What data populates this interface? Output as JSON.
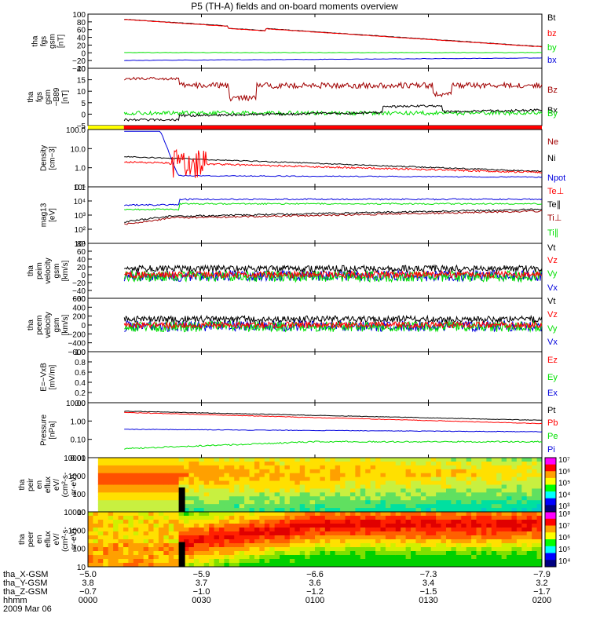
{
  "title": "P5 (TH-A) fields and on-board moments overview",
  "date_label": "2009 Mar 06",
  "colors": {
    "black": "#000000",
    "red": "#ff0000",
    "darkred": "#a00000",
    "green": "#00e000",
    "blue": "#0000dd"
  },
  "chart_data": [
    {
      "id": "fgs",
      "type": "line",
      "ylabel": [
        "tha",
        "fgs",
        "gsm",
        "[nT]"
      ],
      "yticks": [
        "100",
        "80",
        "60",
        "40",
        "20",
        "0",
        "−20",
        "−40"
      ],
      "legend": [
        {
          "name": "Bt",
          "color": "black"
        },
        {
          "name": "bz",
          "color": "red"
        },
        {
          "name": "by",
          "color": "green"
        },
        {
          "name": "bx",
          "color": "blue"
        }
      ]
    },
    {
      "id": "fgm",
      "type": "line",
      "ylabel": [
        "tha",
        "fgs",
        "gsm",
        "−B89",
        "[nT]"
      ],
      "yticks": [
        "20",
        "15",
        "10",
        "5",
        "0",
        "−5"
      ],
      "legend": [
        {
          "name": "Bz",
          "color": "darkred"
        },
        {
          "name": "Bx",
          "color": "black"
        },
        {
          "name": "By",
          "color": "green"
        }
      ]
    },
    {
      "id": "mode",
      "type": "bar",
      "segments": [
        {
          "until_min": 9.5,
          "color": "#ffff00"
        },
        {
          "until_min": 120,
          "color": "#ff0000"
        }
      ]
    },
    {
      "id": "density",
      "type": "line",
      "ylabel": [
        "Density",
        "[cm−3]"
      ],
      "yticks": [
        "100.0",
        "10.0",
        "1.0",
        "0.1"
      ],
      "legend": [
        {
          "name": "Ne",
          "color": "darkred"
        },
        {
          "name": "Ni",
          "color": "black"
        },
        {
          "name": "Npot",
          "color": "blue"
        }
      ]
    },
    {
      "id": "temp",
      "type": "line",
      "ylabel": [
        "mag13",
        "[eV]"
      ],
      "yticks": [
        "10⁵",
        "10⁴",
        "10³",
        "10²",
        "10¹"
      ],
      "legend": [
        {
          "name": "Te⊥",
          "color": "red"
        },
        {
          "name": "Te∥",
          "color": "black"
        },
        {
          "name": "Ti⊥",
          "color": "darkred"
        },
        {
          "name": "Ti∥",
          "color": "green"
        }
      ]
    },
    {
      "id": "peim",
      "type": "line",
      "ylabel": [
        "tha",
        "peim",
        "velocity",
        "gsm",
        "[km/s]"
      ],
      "yticks": [
        "80",
        "60",
        "40",
        "20",
        "0",
        "−20",
        "−40",
        "−60"
      ],
      "legend": [
        {
          "name": "Vt",
          "color": "black"
        },
        {
          "name": "Vz",
          "color": "red"
        },
        {
          "name": "Vy",
          "color": "green"
        },
        {
          "name": "Vx",
          "color": "blue"
        }
      ]
    },
    {
      "id": "peem",
      "type": "line",
      "ylabel": [
        "tha",
        "peem",
        "velocity",
        "gsm",
        "[km/s]"
      ],
      "yticks": [
        "600",
        "400",
        "200",
        "0",
        "−200",
        "−400",
        "−600"
      ],
      "legend": [
        {
          "name": "Vt",
          "color": "black"
        },
        {
          "name": "Vz",
          "color": "red"
        },
        {
          "name": "Vy",
          "color": "green"
        },
        {
          "name": "Vx",
          "color": "blue"
        }
      ]
    },
    {
      "id": "efield",
      "type": "line",
      "ylabel": [
        "E=−VxB",
        "[mV/m]"
      ],
      "yticks": [
        "1.0",
        "0.8",
        "0.6",
        "0.4",
        "0.2",
        "0.0"
      ],
      "legend": [
        {
          "name": "Ez",
          "color": "red"
        },
        {
          "name": "Ey",
          "color": "green"
        },
        {
          "name": "Ex",
          "color": "blue"
        }
      ]
    },
    {
      "id": "pressure",
      "type": "line",
      "ylabel": [
        "Pressure",
        "[nPa]"
      ],
      "yticks": [
        "10.00",
        "1.00",
        "0.10",
        "0.01"
      ],
      "legend": [
        {
          "name": "Pt",
          "color": "black"
        },
        {
          "name": "Pb",
          "color": "red"
        },
        {
          "name": "Pe",
          "color": "green"
        },
        {
          "name": "Pi",
          "color": "blue"
        }
      ]
    },
    {
      "id": "peir",
      "type": "heatmap",
      "ylabel": [
        "tha",
        "peir",
        "en",
        "eflux",
        "eV/",
        "(cm²-s-",
        "sr-eV)"
      ],
      "yticks": [
        "10000",
        "1000",
        "100",
        "10"
      ],
      "colorbar": [
        "10⁷",
        "10⁶",
        "10⁵",
        "10⁴",
        "10³"
      ]
    },
    {
      "id": "peer",
      "type": "heatmap",
      "ylabel": [
        "tha",
        "peer",
        "en",
        "eflux",
        "eV/",
        "(cm²-s-",
        "sr-eV)"
      ],
      "yticks": [
        "10000",
        "1000",
        "100",
        "10"
      ],
      "colorbar": [
        "10⁸",
        "10⁷",
        "10⁶",
        "10⁵",
        "10⁴"
      ]
    }
  ],
  "xaxis": {
    "rows": [
      {
        "label": "tha_X-GSM",
        "values": [
          "−5.0",
          "−5.9",
          "−6.6",
          "−7.3",
          "−7.9"
        ]
      },
      {
        "label": "tha_Y-GSM",
        "values": [
          "3.8",
          "3.7",
          "3.6",
          "3.4",
          "3.2"
        ]
      },
      {
        "label": "tha_Z-GSM",
        "values": [
          "−0.7",
          "−1.0",
          "−1.2",
          "−1.5",
          "−1.7"
        ]
      },
      {
        "label": "hhmm",
        "values": [
          "0000",
          "0030",
          "0100",
          "0130",
          "0200"
        ]
      }
    ]
  }
}
